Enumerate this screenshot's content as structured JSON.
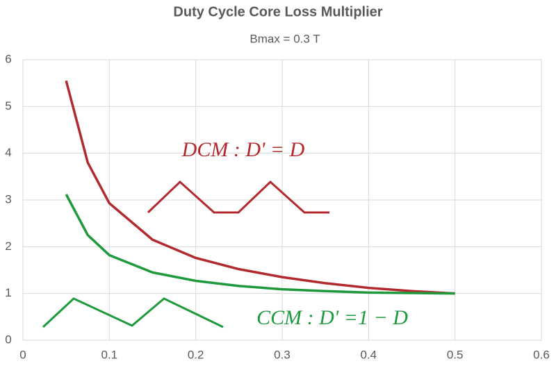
{
  "chart_data": {
    "type": "line",
    "title": "Duty Cycle Core Loss Multiplier",
    "subtitle": "Bmax = 0.3 T",
    "x": [
      0.05,
      0.075,
      0.1,
      0.15,
      0.2,
      0.25,
      0.3,
      0.35,
      0.4,
      0.45,
      0.5
    ],
    "series": [
      {
        "name": "DCM",
        "color": "#b22a2e",
        "values": [
          5.55,
          3.8,
          2.93,
          2.15,
          1.76,
          1.52,
          1.35,
          1.22,
          1.12,
          1.05,
          1.0
        ]
      },
      {
        "name": "CCM",
        "color": "#1e9a3c",
        "values": [
          3.12,
          2.25,
          1.82,
          1.45,
          1.27,
          1.16,
          1.09,
          1.05,
          1.02,
          1.01,
          1.0
        ]
      }
    ],
    "annotations": [
      "DCM :   D' = D",
      "CCM :   D' =1 − D"
    ],
    "xlim": [
      0,
      0.6
    ],
    "xticks": [
      0,
      0.1,
      0.2,
      0.3,
      0.4,
      0.5,
      0.6
    ],
    "ylim": [
      0,
      6
    ],
    "yticks": [
      0,
      1,
      2,
      3,
      4,
      5,
      6
    ],
    "grid": true
  }
}
